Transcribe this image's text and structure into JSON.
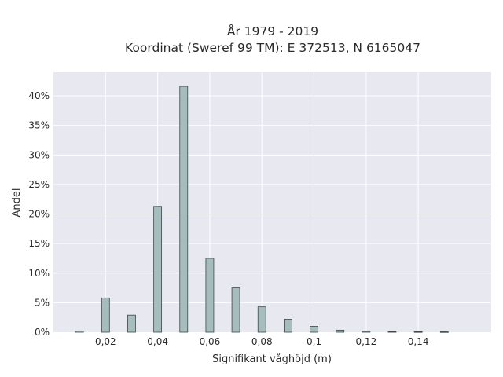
{
  "chart_data": {
    "type": "bar",
    "title": [
      "År 1979 - 2019",
      "Koordinat (Sweref 99 TM): E 372513, N 6165047"
    ],
    "xlabel": "Signifikant våghöjd (m)",
    "ylabel": "Andel",
    "x": [
      0.01,
      0.02,
      0.03,
      0.04,
      0.05,
      0.06,
      0.07,
      0.08,
      0.09,
      0.1,
      0.11,
      0.12,
      0.13,
      0.14,
      0.15
    ],
    "values": [
      0.2,
      5.8,
      2.9,
      21.3,
      41.6,
      12.5,
      7.5,
      4.3,
      2.2,
      1.0,
      0.35,
      0.15,
      0.1,
      0.08,
      0.07
    ],
    "xlim": [
      0.0,
      0.168
    ],
    "ylim": [
      0,
      44
    ],
    "x_ticks": [
      0.02,
      0.04,
      0.06,
      0.08,
      0.1,
      0.12,
      0.14
    ],
    "x_tick_labels": [
      "0,02",
      "0,04",
      "0,06",
      "0,08",
      "0,1",
      "0,12",
      "0,14"
    ],
    "y_ticks": [
      0,
      5,
      10,
      15,
      20,
      25,
      30,
      35,
      40
    ],
    "y_tick_labels": [
      "0%",
      "5%",
      "10%",
      "15%",
      "20%",
      "25%",
      "30%",
      "35%",
      "40%"
    ],
    "grid": true,
    "colors": {
      "bar_fill": "#a6bcbd",
      "bar_stroke": "#3c4848",
      "plot_bg": "#e8e8f0",
      "grid": "#ffffff"
    }
  }
}
